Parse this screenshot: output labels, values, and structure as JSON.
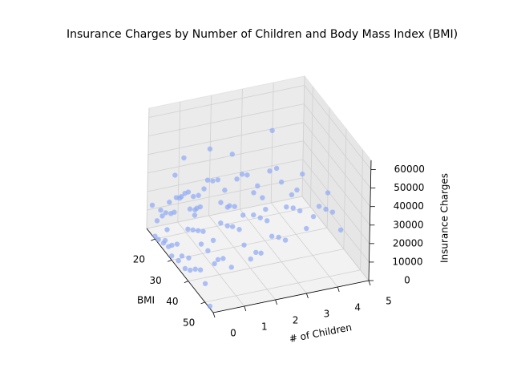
{
  "chart_data": {
    "type": "scatter3d",
    "title": "Insurance Charges by Number of Children and Body Mass Index (BMI)",
    "xlabel": "BMI",
    "ylabel": "# of Children",
    "zlabel": "Insurance Charges",
    "color": "#8fa9f5",
    "xlim": [
      15,
      55
    ],
    "xticks": [
      20,
      30,
      40,
      50
    ],
    "ylim": [
      0,
      5
    ],
    "yticks": [
      0,
      1,
      2,
      3,
      4,
      5
    ],
    "zlim": [
      0,
      65000
    ],
    "zticks": [
      0,
      10000,
      20000,
      30000,
      40000,
      50000,
      60000
    ],
    "grid": true,
    "x": [
      22,
      25,
      28,
      30,
      33,
      36,
      38,
      41,
      44,
      27,
      24,
      26,
      23,
      29,
      31,
      35,
      37,
      39,
      42,
      45,
      34,
      32,
      47,
      50,
      20,
      18,
      21,
      26,
      30,
      34,
      40,
      43,
      36,
      28,
      31,
      53,
      21,
      24,
      27,
      30,
      33,
      36,
      39,
      42,
      25,
      28,
      32,
      35,
      38,
      40,
      22,
      30,
      44,
      47,
      33,
      26,
      29,
      37,
      22,
      26,
      29,
      33,
      36,
      40,
      43,
      27,
      24,
      31,
      34,
      37,
      41,
      30,
      46,
      28,
      35,
      23,
      27,
      31,
      34,
      38,
      42,
      28,
      32,
      36,
      39,
      25,
      33,
      30,
      24,
      28,
      32,
      36,
      40,
      30,
      33,
      27,
      25,
      29,
      33,
      38,
      30
    ],
    "y": [
      0,
      0,
      0,
      0,
      0,
      0,
      0,
      0,
      0,
      0,
      0,
      0,
      0,
      0,
      0,
      0,
      0,
      0,
      0,
      0,
      0,
      0,
      0,
      0,
      0,
      0,
      0,
      0,
      0,
      0,
      0,
      0,
      0,
      0,
      0,
      0,
      1,
      1,
      1,
      1,
      1,
      1,
      1,
      1,
      1,
      1,
      1,
      1,
      1,
      1,
      1,
      1,
      1,
      1,
      1,
      1,
      1,
      1,
      2,
      2,
      2,
      2,
      2,
      2,
      2,
      2,
      2,
      2,
      2,
      2,
      2,
      2,
      2,
      2,
      2,
      3,
      3,
      3,
      3,
      3,
      3,
      3,
      3,
      3,
      3,
      3,
      3,
      3,
      4,
      4,
      4,
      4,
      4,
      4,
      4,
      4,
      5,
      5,
      5,
      5,
      5
    ],
    "z": [
      2000,
      3500,
      5000,
      8000,
      12000,
      9000,
      4500,
      7000,
      11000,
      13000,
      17000,
      21000,
      19000,
      24000,
      27000,
      40000,
      44000,
      47000,
      48000,
      52000,
      38000,
      36000,
      14000,
      10000,
      1500,
      16000,
      11000,
      6000,
      2200,
      4200,
      12500,
      39000,
      62000,
      29000,
      47000,
      1200,
      3000,
      6000,
      9000,
      12000,
      5000,
      14000,
      7000,
      11000,
      18000,
      23000,
      42000,
      45000,
      49000,
      39000,
      15000,
      35000,
      41000,
      12000,
      60000,
      20000,
      4000,
      2500,
      4000,
      7000,
      10000,
      13000,
      8000,
      5000,
      12000,
      19000,
      24000,
      38000,
      44000,
      47000,
      42000,
      22000,
      15000,
      48000,
      23000,
      6000,
      9000,
      12000,
      7000,
      11000,
      14000,
      21000,
      40000,
      46000,
      42000,
      24000,
      63000,
      17000,
      8000,
      12000,
      15000,
      10000,
      21000,
      24000,
      36000,
      18000,
      6000,
      9000,
      12000,
      8000,
      19000
    ]
  }
}
